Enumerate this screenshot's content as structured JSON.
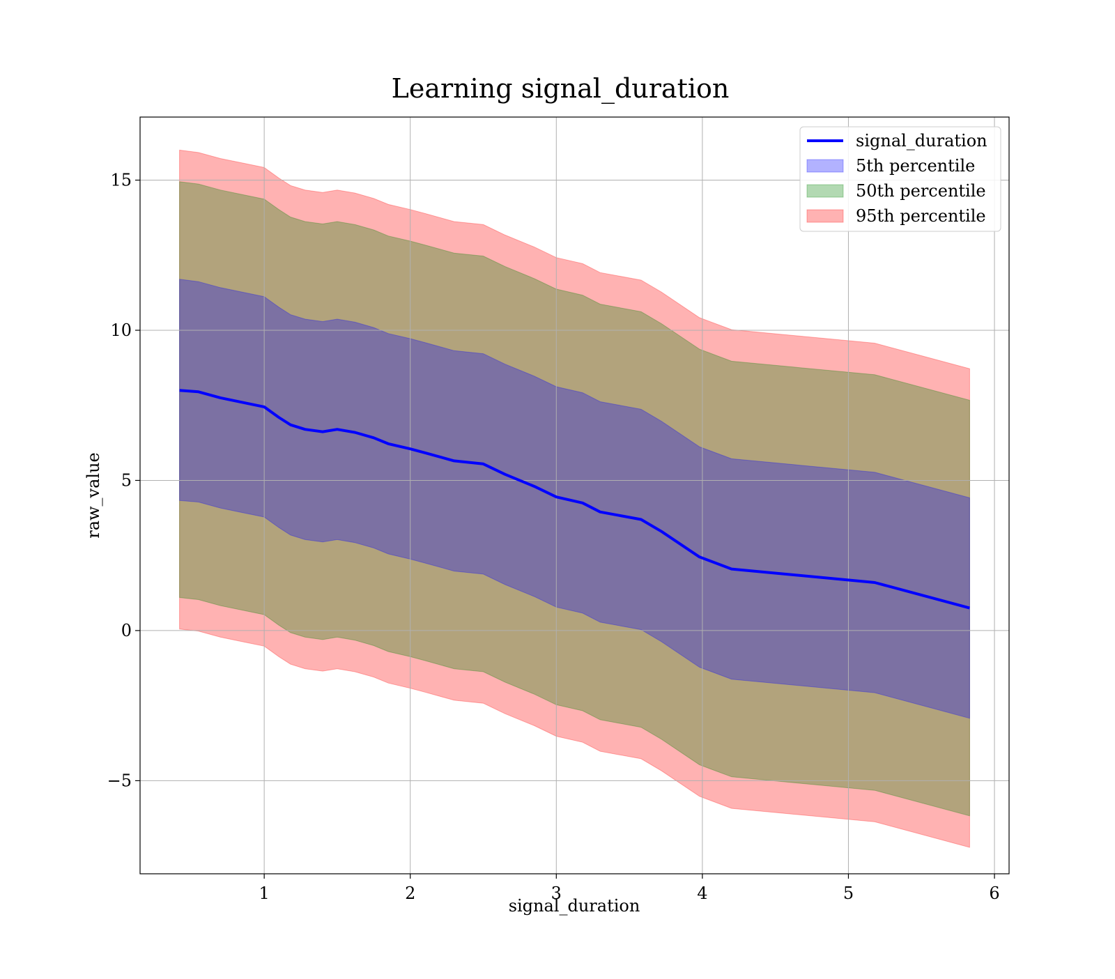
{
  "chart_data": {
    "type": "area",
    "title": "Learning signal_duration",
    "xlabel": "signal_duration",
    "ylabel": "raw_value",
    "xlim": [
      0.15,
      6.1
    ],
    "ylim": [
      -8.1,
      17.1
    ],
    "xticks": [
      1,
      2,
      3,
      4,
      5,
      6
    ],
    "xtick_labels": [
      "1",
      "2",
      "3",
      "4",
      "5",
      "6"
    ],
    "yticks": [
      -5,
      0,
      5,
      10,
      15
    ],
    "ytick_labels": [
      "−5",
      "0",
      "5",
      "10",
      "15"
    ],
    "grid": true,
    "legend_position": "upper right",
    "x": [
      0.42,
      0.55,
      0.7,
      0.85,
      1.0,
      1.1,
      1.18,
      1.28,
      1.4,
      1.5,
      1.62,
      1.75,
      1.85,
      2.0,
      2.1,
      2.3,
      2.5,
      2.65,
      2.85,
      3.0,
      3.18,
      3.3,
      3.58,
      3.72,
      3.98,
      4.2,
      5.18,
      5.83
    ],
    "line": {
      "name": "signal_duration",
      "color": "#0000ff",
      "values": [
        8.0,
        7.95,
        7.75,
        7.6,
        7.45,
        7.1,
        6.85,
        6.7,
        6.62,
        6.7,
        6.6,
        6.42,
        6.22,
        6.05,
        5.92,
        5.65,
        5.55,
        5.2,
        4.8,
        4.45,
        4.25,
        3.95,
        3.7,
        3.3,
        2.45,
        2.05,
        1.6,
        0.75
      ]
    },
    "series": [
      {
        "name": "5th percentile",
        "color": "#0000ff",
        "upper": [
          11.7,
          11.62,
          11.42,
          11.27,
          11.12,
          10.77,
          10.52,
          10.37,
          10.29,
          10.37,
          10.27,
          10.09,
          9.89,
          9.72,
          9.59,
          9.32,
          9.22,
          8.87,
          8.47,
          8.12,
          7.92,
          7.62,
          7.37,
          6.97,
          6.12,
          5.72,
          5.27,
          4.42
        ],
        "lower": [
          4.33,
          4.28,
          4.08,
          3.93,
          3.78,
          3.43,
          3.18,
          3.03,
          2.95,
          3.03,
          2.93,
          2.75,
          2.55,
          2.38,
          2.25,
          1.98,
          1.88,
          1.53,
          1.13,
          0.78,
          0.58,
          0.28,
          0.03,
          -0.37,
          -1.22,
          -1.62,
          -2.07,
          -2.92
        ]
      },
      {
        "name": "50th percentile",
        "color": "#008000",
        "upper": [
          14.95,
          14.87,
          14.67,
          14.52,
          14.37,
          14.02,
          13.77,
          13.62,
          13.54,
          13.62,
          13.52,
          13.34,
          13.14,
          12.97,
          12.84,
          12.57,
          12.47,
          12.12,
          11.72,
          11.37,
          11.17,
          10.87,
          10.62,
          10.22,
          9.37,
          8.97,
          8.52,
          7.67
        ],
        "lower": [
          1.1,
          1.03,
          0.83,
          0.68,
          0.53,
          0.18,
          -0.07,
          -0.22,
          -0.3,
          -0.22,
          -0.32,
          -0.5,
          -0.7,
          -0.87,
          -1.0,
          -1.27,
          -1.37,
          -1.72,
          -2.12,
          -2.47,
          -2.67,
          -2.97,
          -3.22,
          -3.62,
          -4.47,
          -4.87,
          -5.32,
          -6.17
        ]
      },
      {
        "name": "95th percentile",
        "color": "#ff0000",
        "upper": [
          16.0,
          15.92,
          15.72,
          15.57,
          15.42,
          15.07,
          14.82,
          14.67,
          14.59,
          14.67,
          14.57,
          14.39,
          14.19,
          14.02,
          13.89,
          13.62,
          13.52,
          13.17,
          12.77,
          12.42,
          12.22,
          11.92,
          11.67,
          11.27,
          10.42,
          10.02,
          9.57,
          8.72
        ],
        "lower": [
          0.05,
          -0.02,
          -0.22,
          -0.37,
          -0.52,
          -0.87,
          -1.12,
          -1.27,
          -1.35,
          -1.27,
          -1.37,
          -1.55,
          -1.75,
          -1.92,
          -2.05,
          -2.32,
          -2.42,
          -2.77,
          -3.17,
          -3.52,
          -3.72,
          -4.02,
          -4.27,
          -4.67,
          -5.52,
          -5.92,
          -6.37,
          -7.22
        ]
      }
    ]
  }
}
